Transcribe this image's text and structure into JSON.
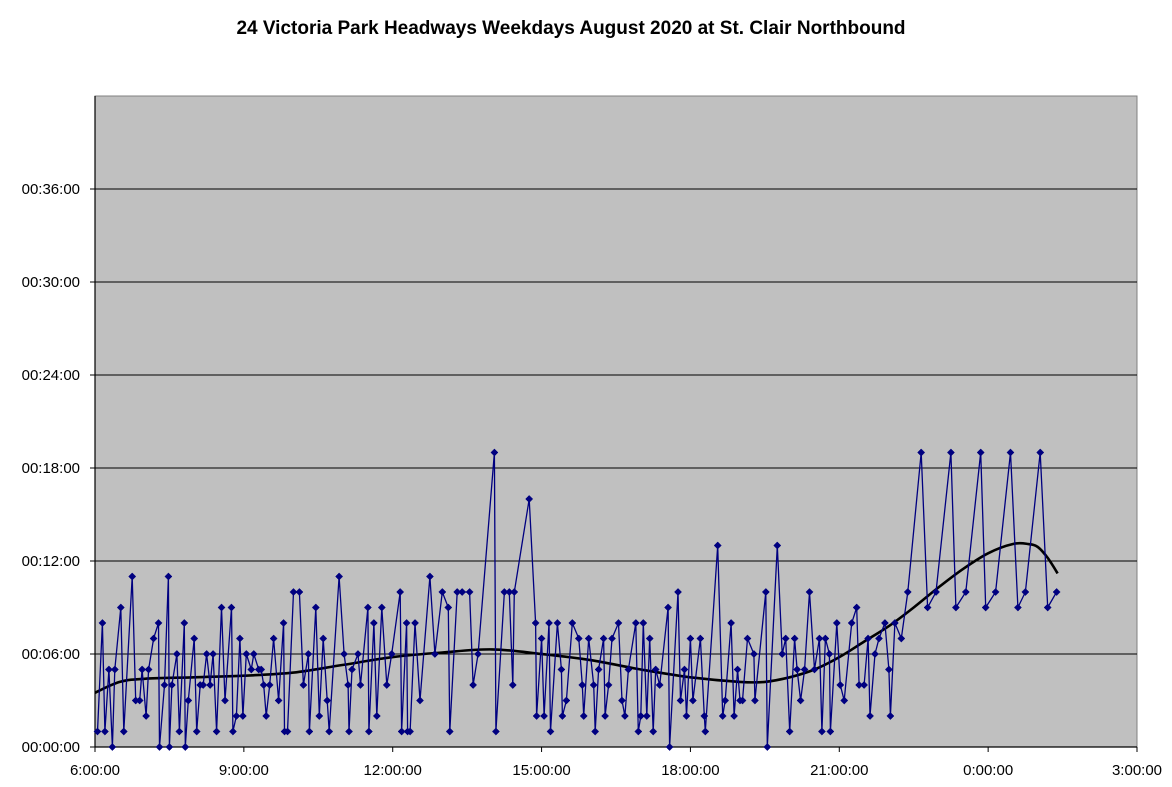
{
  "chart_data": {
    "type": "line",
    "title": "24 Victoria Park Headways Weekdays August 2020 at St. Clair Northbound",
    "xlabel": "",
    "ylabel": "",
    "xlim": [
      "6:00:00",
      "27:00:00"
    ],
    "ylim": [
      "00:00:00",
      "00:42:00"
    ],
    "x_ticks": [
      "6:00:00",
      "9:00:00",
      "12:00:00",
      "15:00:00",
      "18:00:00",
      "21:00:00",
      "0:00:00",
      "3:00:00"
    ],
    "y_ticks": [
      "00:00:00",
      "00:06:00",
      "00:12:00",
      "00:18:00",
      "00:24:00",
      "00:30:00",
      "00:36:00"
    ],
    "grid": "horizontal",
    "legend": "none",
    "plot_background": "#c0c0c0",
    "series": [
      {
        "style": "line-with-diamond-markers",
        "color": "#000080",
        "x_unit": "hours since midnight (values over 24 are after midnight)",
        "y_unit": "headway minutes",
        "points": [
          [
            6.05,
            1
          ],
          [
            6.15,
            8
          ],
          [
            6.2,
            1
          ],
          [
            6.28,
            5
          ],
          [
            6.35,
            0
          ],
          [
            6.4,
            5
          ],
          [
            6.52,
            9
          ],
          [
            6.58,
            1
          ],
          [
            6.75,
            11
          ],
          [
            6.82,
            3
          ],
          [
            6.9,
            3
          ],
          [
            6.95,
            5
          ],
          [
            7.03,
            2
          ],
          [
            7.08,
            5
          ],
          [
            7.18,
            7
          ],
          [
            7.28,
            8
          ],
          [
            7.3,
            0
          ],
          [
            7.4,
            4
          ],
          [
            7.48,
            11
          ],
          [
            7.5,
            0
          ],
          [
            7.55,
            4
          ],
          [
            7.65,
            6
          ],
          [
            7.7,
            1
          ],
          [
            7.8,
            8
          ],
          [
            7.82,
            0
          ],
          [
            7.88,
            3
          ],
          [
            8.0,
            7
          ],
          [
            8.05,
            1
          ],
          [
            8.12,
            4
          ],
          [
            8.18,
            4
          ],
          [
            8.25,
            6
          ],
          [
            8.32,
            4
          ],
          [
            8.38,
            6
          ],
          [
            8.45,
            1
          ],
          [
            8.55,
            9
          ],
          [
            8.62,
            3
          ],
          [
            8.75,
            9
          ],
          [
            8.78,
            1
          ],
          [
            8.85,
            2
          ],
          [
            8.92,
            7
          ],
          [
            8.98,
            2
          ],
          [
            9.05,
            6
          ],
          [
            9.15,
            5
          ],
          [
            9.2,
            6
          ],
          [
            9.3,
            5
          ],
          [
            9.35,
            5
          ],
          [
            9.4,
            4
          ],
          [
            9.45,
            2
          ],
          [
            9.52,
            4
          ],
          [
            9.6,
            7
          ],
          [
            9.7,
            3
          ],
          [
            9.8,
            8
          ],
          [
            9.82,
            1
          ],
          [
            9.88,
            1
          ],
          [
            10.0,
            10
          ],
          [
            10.12,
            10
          ],
          [
            10.2,
            4
          ],
          [
            10.3,
            6
          ],
          [
            10.32,
            1
          ],
          [
            10.45,
            9
          ],
          [
            10.52,
            2
          ],
          [
            10.6,
            7
          ],
          [
            10.68,
            3
          ],
          [
            10.72,
            1
          ],
          [
            10.92,
            11
          ],
          [
            11.02,
            6
          ],
          [
            11.1,
            4
          ],
          [
            11.12,
            1
          ],
          [
            11.18,
            5
          ],
          [
            11.3,
            6
          ],
          [
            11.35,
            4
          ],
          [
            11.5,
            9
          ],
          [
            11.52,
            1
          ],
          [
            11.62,
            8
          ],
          [
            11.68,
            2
          ],
          [
            11.78,
            9
          ],
          [
            11.88,
            4
          ],
          [
            11.98,
            6
          ],
          [
            12.15,
            10
          ],
          [
            12.18,
            1
          ],
          [
            12.28,
            8
          ],
          [
            12.3,
            1
          ],
          [
            12.35,
            1
          ],
          [
            12.45,
            8
          ],
          [
            12.55,
            3
          ],
          [
            12.75,
            11
          ],
          [
            12.85,
            6
          ],
          [
            13.0,
            10
          ],
          [
            13.12,
            9
          ],
          [
            13.15,
            1
          ],
          [
            13.3,
            10
          ],
          [
            13.4,
            10
          ],
          [
            13.55,
            10
          ],
          [
            13.62,
            4
          ],
          [
            13.72,
            6
          ],
          [
            14.05,
            19
          ],
          [
            14.08,
            1
          ],
          [
            14.25,
            10
          ],
          [
            14.35,
            10
          ],
          [
            14.42,
            4
          ],
          [
            14.45,
            10
          ],
          [
            14.75,
            16
          ],
          [
            14.88,
            8
          ],
          [
            14.9,
            2
          ],
          [
            15.0,
            7
          ],
          [
            15.05,
            2
          ],
          [
            15.15,
            8
          ],
          [
            15.18,
            1
          ],
          [
            15.32,
            8
          ],
          [
            15.4,
            5
          ],
          [
            15.42,
            2
          ],
          [
            15.5,
            3
          ],
          [
            15.62,
            8
          ],
          [
            15.75,
            7
          ],
          [
            15.82,
            4
          ],
          [
            15.85,
            2
          ],
          [
            15.95,
            7
          ],
          [
            16.05,
            4
          ],
          [
            16.08,
            1
          ],
          [
            16.15,
            5
          ],
          [
            16.25,
            7
          ],
          [
            16.28,
            2
          ],
          [
            16.35,
            4
          ],
          [
            16.42,
            7
          ],
          [
            16.55,
            8
          ],
          [
            16.62,
            3
          ],
          [
            16.68,
            2
          ],
          [
            16.75,
            5
          ],
          [
            16.9,
            8
          ],
          [
            16.95,
            1
          ],
          [
            17.0,
            2
          ],
          [
            17.05,
            8
          ],
          [
            17.12,
            2
          ],
          [
            17.18,
            7
          ],
          [
            17.25,
            1
          ],
          [
            17.3,
            5
          ],
          [
            17.38,
            4
          ],
          [
            17.55,
            9
          ],
          [
            17.58,
            0
          ],
          [
            17.75,
            10
          ],
          [
            17.8,
            3
          ],
          [
            17.88,
            5
          ],
          [
            17.92,
            2
          ],
          [
            18.0,
            7
          ],
          [
            18.05,
            3
          ],
          [
            18.2,
            7
          ],
          [
            18.28,
            2
          ],
          [
            18.3,
            1
          ],
          [
            18.55,
            13
          ],
          [
            18.65,
            2
          ],
          [
            18.7,
            3
          ],
          [
            18.82,
            8
          ],
          [
            18.88,
            2
          ],
          [
            18.95,
            5
          ],
          [
            19.0,
            3
          ],
          [
            19.05,
            3
          ],
          [
            19.15,
            7
          ],
          [
            19.28,
            6
          ],
          [
            19.3,
            3
          ],
          [
            19.52,
            10
          ],
          [
            19.55,
            0
          ],
          [
            19.75,
            13
          ],
          [
            19.85,
            6
          ],
          [
            19.92,
            7
          ],
          [
            20.0,
            1
          ],
          [
            20.1,
            7
          ],
          [
            20.15,
            5
          ],
          [
            20.22,
            3
          ],
          [
            20.3,
            5
          ],
          [
            20.4,
            10
          ],
          [
            20.5,
            5
          ],
          [
            20.6,
            7
          ],
          [
            20.65,
            1
          ],
          [
            20.72,
            7
          ],
          [
            20.8,
            6
          ],
          [
            20.82,
            1
          ],
          [
            20.95,
            8
          ],
          [
            21.02,
            4
          ],
          [
            21.1,
            3
          ],
          [
            21.25,
            8
          ],
          [
            21.35,
            9
          ],
          [
            21.4,
            4
          ],
          [
            21.5,
            4
          ],
          [
            21.58,
            7
          ],
          [
            21.62,
            2
          ],
          [
            21.72,
            6
          ],
          [
            21.8,
            7
          ],
          [
            21.92,
            8
          ],
          [
            22.0,
            5
          ],
          [
            22.03,
            2
          ],
          [
            22.12,
            8
          ],
          [
            22.25,
            7
          ],
          [
            22.38,
            10
          ],
          [
            22.65,
            19
          ],
          [
            22.78,
            9
          ],
          [
            22.95,
            10
          ],
          [
            23.25,
            19
          ],
          [
            23.35,
            9
          ],
          [
            23.55,
            10
          ],
          [
            23.85,
            19
          ],
          [
            23.95,
            9
          ],
          [
            24.15,
            10
          ],
          [
            24.45,
            19
          ],
          [
            24.6,
            9
          ],
          [
            24.75,
            10
          ],
          [
            25.05,
            19
          ],
          [
            25.2,
            9
          ],
          [
            25.38,
            10
          ]
        ]
      },
      {
        "style": "trend-curve",
        "color": "#000000",
        "x_unit": "hours since midnight (values over 24 are after midnight)",
        "y_unit": "headway minutes",
        "points": [
          [
            6.0,
            3.5
          ],
          [
            6.5,
            4.2
          ],
          [
            7.0,
            4.4
          ],
          [
            8.0,
            4.5
          ],
          [
            9.0,
            4.6
          ],
          [
            10.0,
            4.8
          ],
          [
            11.0,
            5.3
          ],
          [
            12.0,
            5.8
          ],
          [
            13.0,
            6.1
          ],
          [
            14.0,
            6.3
          ],
          [
            15.0,
            6.0
          ],
          [
            16.0,
            5.6
          ],
          [
            17.0,
            5.0
          ],
          [
            18.0,
            4.5
          ],
          [
            19.0,
            4.2
          ],
          [
            19.5,
            4.2
          ],
          [
            20.0,
            4.5
          ],
          [
            20.5,
            5.0
          ],
          [
            21.0,
            5.8
          ],
          [
            21.5,
            6.8
          ],
          [
            22.0,
            7.8
          ],
          [
            22.5,
            9.0
          ],
          [
            23.0,
            10.3
          ],
          [
            23.5,
            11.5
          ],
          [
            24.0,
            12.5
          ],
          [
            24.5,
            13.1
          ],
          [
            24.8,
            13.1
          ],
          [
            25.0,
            12.9
          ],
          [
            25.2,
            12.2
          ],
          [
            25.4,
            11.2
          ]
        ]
      }
    ]
  }
}
